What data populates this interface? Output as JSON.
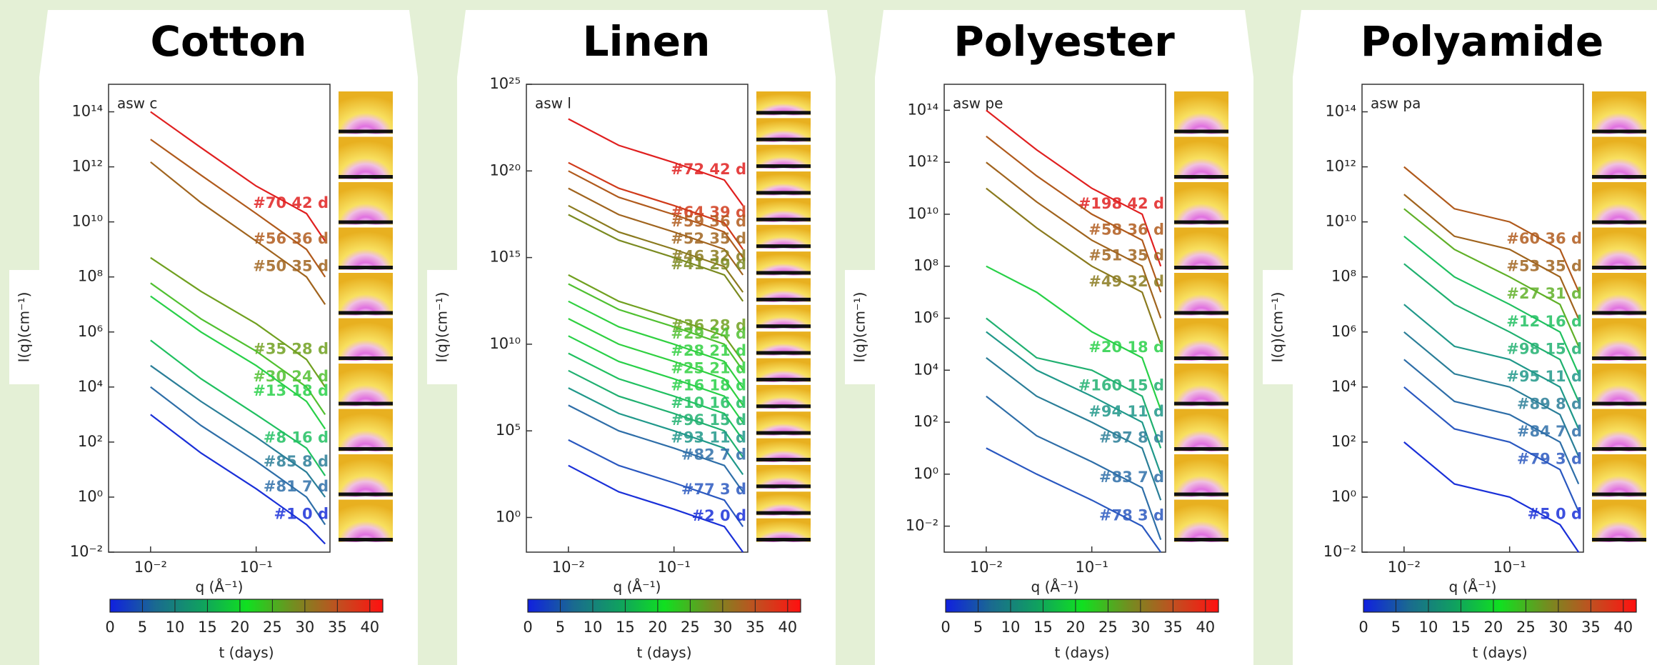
{
  "chart_data": [
    {
      "type": "line",
      "title": "Cotton",
      "inner_label": "asw  c",
      "xlabel": "q (Å⁻¹)",
      "ylabel": "I(q)(cm⁻¹)",
      "log_x": true,
      "log_y": true,
      "x": [
        0.01,
        0.03,
        0.1,
        0.3,
        0.45
      ],
      "xlim": [
        0.004,
        0.5
      ],
      "xticks": [
        {
          "value": 0.01,
          "label": "10⁻²"
        },
        {
          "value": 0.1,
          "label": "10⁻¹"
        }
      ],
      "ylim": [
        0.01,
        1000000000000000.0
      ],
      "yticks": [
        {
          "value": 0.01,
          "label": "10⁻²"
        },
        {
          "value": 1,
          "label": "10⁰"
        },
        {
          "value": 100,
          "label": "10²"
        },
        {
          "value": 10000,
          "label": "10⁴"
        },
        {
          "value": 1000000.0,
          "label": "10⁶"
        },
        {
          "value": 100000000.0,
          "label": "10⁸"
        },
        {
          "value": 10000000000.0,
          "label": "10¹⁰"
        },
        {
          "value": 1000000000000.0,
          "label": "10¹²"
        },
        {
          "value": 100000000000000.0,
          "label": "10¹⁴"
        }
      ],
      "series": [
        {
          "name": "#70 42 d",
          "color": "#e02020",
          "values": [
            100000000000000.0,
            5000000000000.0,
            200000000000.0,
            20000000000.0,
            2000000000.0
          ]
        },
        {
          "name": "#56 36 d",
          "color": "#b05a1c",
          "values": [
            10000000000000.0,
            500000000000.0,
            20000000000.0,
            1000000000.0,
            100000000.0
          ]
        },
        {
          "name": "#50 35 d",
          "color": "#a0641e",
          "values": [
            1500000000000.0,
            50000000000.0,
            2000000000.0,
            100000000.0,
            10000000.0
          ]
        },
        {
          "name": "#35 28 d",
          "color": "#70a020",
          "values": [
            500000000.0,
            30000000.0,
            2000000.0,
            100000.0,
            10000.0
          ]
        },
        {
          "name": "#30 24 d",
          "color": "#50c030",
          "values": [
            60000000.0,
            3000000.0,
            200000.0,
            10000.0,
            1000
          ]
        },
        {
          "name": "#13 18 d",
          "color": "#28d048",
          "values": [
            20000000.0,
            1000000.0,
            60000.0,
            3000,
            300
          ]
        },
        {
          "name": "#8 16 d",
          "color": "#20c060",
          "values": [
            500000.0,
            20000.0,
            1000,
            60,
            6
          ]
        },
        {
          "name": "#85 8 d",
          "color": "#2a7e98",
          "values": [
            60000.0,
            3000,
            150,
            8,
            1
          ]
        },
        {
          "name": "#81 7 d",
          "color": "#2e6ea8",
          "values": [
            10000.0,
            400,
            20,
            1,
            0.1
          ]
        },
        {
          "name": "#1 0 d",
          "color": "#1a30d8",
          "values": [
            1000,
            40,
            2,
            0.1,
            0.02
          ]
        }
      ],
      "colorbar": {
        "lim": [
          0,
          42
        ],
        "ticks": [
          0,
          5,
          10,
          15,
          20,
          25,
          30,
          35,
          40
        ],
        "label": "t (days)",
        "colors": [
          "#1020e0",
          "#1a6a90",
          "#10a060",
          "#10e020",
          "#709020",
          "#c05020",
          "#ff1010"
        ]
      }
    },
    {
      "type": "line",
      "title": "Linen",
      "inner_label": "asw  l",
      "xlabel": "q (Å⁻¹)",
      "ylabel": "I(q)(cm⁻¹)",
      "log_x": true,
      "log_y": true,
      "x": [
        0.01,
        0.03,
        0.1,
        0.3,
        0.45
      ],
      "xlim": [
        0.004,
        0.5
      ],
      "xticks": [
        {
          "value": 0.01,
          "label": "10⁻²"
        },
        {
          "value": 0.1,
          "label": "10⁻¹"
        }
      ],
      "ylim": [
        0.01,
        1e+25
      ],
      "yticks": [
        {
          "value": 1,
          "label": "10⁰"
        },
        {
          "value": 100000.0,
          "label": "10⁵"
        },
        {
          "value": 10000000000.0,
          "label": "10¹⁰"
        },
        {
          "value": 1000000000000000.0,
          "label": "10¹⁵"
        },
        {
          "value": 1e+20,
          "label": "10²⁰"
        },
        {
          "value": 1e+25,
          "label": "10²⁵"
        }
      ],
      "series": [
        {
          "name": "#72 42 d",
          "color": "#e02020",
          "values": [
            1e+23,
            3e+21,
            3e+20,
            3e+19,
            1e+18
          ]
        },
        {
          "name": "#64 39 d",
          "color": "#d03a1a",
          "values": [
            3e+20,
            1e+19,
            1e+18,
            1e+17,
            3000000000000000.0
          ]
        },
        {
          "name": "#59 36 d",
          "color": "#b05a1c",
          "values": [
            1e+20,
            3e+18,
            3e+17,
            3e+16,
            1000000000000000.0
          ]
        },
        {
          "name": "#52 35 d",
          "color": "#a0641e",
          "values": [
            1e+19,
            3e+17,
            3e+16,
            3000000000000000.0,
            100000000000000.0
          ]
        },
        {
          "name": "#46 32 d",
          "color": "#8a7a1e",
          "values": [
            1e+18,
            3e+16,
            3000000000000000.0,
            300000000000000.0,
            10000000000000.0
          ]
        },
        {
          "name": "#41 29 d",
          "color": "#7a8a20",
          "values": [
            3e+17,
            1e+16,
            1000000000000000.0,
            100000000000000.0,
            3000000000000.0
          ]
        },
        {
          "name": "#36 28 d",
          "color": "#70a020",
          "values": [
            100000000000000.0,
            3000000000000.0,
            300000000000.0,
            30000000000.0,
            1000000000.0
          ]
        },
        {
          "name": "#29 24 d",
          "color": "#50c030",
          "values": [
            30000000000000.0,
            1000000000000.0,
            100000000000.0,
            10000000000.0,
            300000000.0
          ]
        },
        {
          "name": "#28 21 d",
          "color": "#30d040",
          "values": [
            3000000000000.0,
            100000000000.0,
            10000000000.0,
            1000000000.0,
            30000000.0
          ]
        },
        {
          "name": "#25 21 d",
          "color": "#30d040",
          "values": [
            300000000000.0,
            10000000000.0,
            1000000000.0,
            100000000.0,
            3000000.0
          ]
        },
        {
          "name": "#16 18 d",
          "color": "#28d048",
          "values": [
            30000000000.0,
            1000000000.0,
            100000000.0,
            10000000.0,
            300000.0
          ]
        },
        {
          "name": "#10 16 d",
          "color": "#20c060",
          "values": [
            3000000000.0,
            100000000.0,
            10000000.0,
            1000000.0,
            30000.0
          ]
        },
        {
          "name": "#96 15 d",
          "color": "#20b070",
          "values": [
            300000000.0,
            10000000.0,
            1000000.0,
            100000.0,
            3000
          ]
        },
        {
          "name": "#93 11 d",
          "color": "#20988a",
          "values": [
            30000000.0,
            1000000.0,
            100000.0,
            10000.0,
            300
          ]
        },
        {
          "name": "#82 7 d",
          "color": "#2e6ea8",
          "values": [
            3000000.0,
            100000.0,
            10000.0,
            1000,
            30
          ]
        },
        {
          "name": "#77 3 d",
          "color": "#2a58c0",
          "values": [
            30000.0,
            1000,
            100,
            10,
            0.3
          ]
        },
        {
          "name": "#2 0 d",
          "color": "#1a30d8",
          "values": [
            1000,
            30,
            3,
            0.3,
            0.01
          ]
        }
      ],
      "colorbar": {
        "lim": [
          0,
          42
        ],
        "ticks": [
          0,
          5,
          10,
          15,
          20,
          25,
          30,
          35,
          40
        ],
        "label": "t (days)",
        "colors": [
          "#1020e0",
          "#1a6a90",
          "#10a060",
          "#10e020",
          "#709020",
          "#c05020",
          "#ff1010"
        ]
      }
    },
    {
      "type": "line",
      "title": "Polyester",
      "inner_label": "asw  pe",
      "xlabel": "q (Å⁻¹)",
      "ylabel": "I(q)(cm⁻¹)",
      "log_x": true,
      "log_y": true,
      "x": [
        0.01,
        0.03,
        0.1,
        0.3,
        0.45
      ],
      "xlim": [
        0.004,
        0.5
      ],
      "xticks": [
        {
          "value": 0.01,
          "label": "10⁻²"
        },
        {
          "value": 0.1,
          "label": "10⁻¹"
        }
      ],
      "ylim": [
        0.001,
        1000000000000000.0
      ],
      "yticks": [
        {
          "value": 0.01,
          "label": "10⁻²"
        },
        {
          "value": 1,
          "label": "10⁰"
        },
        {
          "value": 100,
          "label": "10²"
        },
        {
          "value": 10000,
          "label": "10⁴"
        },
        {
          "value": 1000000.0,
          "label": "10⁶"
        },
        {
          "value": 100000000.0,
          "label": "10⁸"
        },
        {
          "value": 10000000000.0,
          "label": "10¹⁰"
        },
        {
          "value": 1000000000000.0,
          "label": "10¹²"
        },
        {
          "value": 100000000000000.0,
          "label": "10¹⁴"
        }
      ],
      "series": [
        {
          "name": "#198 42 d",
          "color": "#e02020",
          "values": [
            100000000000000.0,
            3000000000000.0,
            100000000000.0,
            10000000000.0,
            100000000.0
          ]
        },
        {
          "name": "#58 36 d",
          "color": "#b05a1c",
          "values": [
            10000000000000.0,
            300000000000.0,
            10000000000.0,
            1000000000.0,
            10000000.0
          ]
        },
        {
          "name": "#51 35 d",
          "color": "#a0641e",
          "values": [
            1000000000000.0,
            30000000000.0,
            1000000000.0,
            100000000.0,
            1000000.0
          ]
        },
        {
          "name": "#49 32 d",
          "color": "#8a7a1e",
          "values": [
            100000000000.0,
            3000000000.0,
            100000000.0,
            10000000.0,
            100000.0
          ]
        },
        {
          "name": "#20 18 d",
          "color": "#28d048",
          "values": [
            100000000.0,
            10000000.0,
            300000.0,
            30000.0,
            300
          ]
        },
        {
          "name": "#160 15 d",
          "color": "#20b070",
          "values": [
            1000000.0,
            30000.0,
            10000.0,
            1000,
            10
          ]
        },
        {
          "name": "#94 11 d",
          "color": "#20988a",
          "values": [
            300000.0,
            10000.0,
            1000,
            100,
            1
          ]
        },
        {
          "name": "#97 8 d",
          "color": "#2a7e98",
          "values": [
            30000.0,
            1000,
            100,
            10,
            0.1
          ]
        },
        {
          "name": "#83 7 d",
          "color": "#2e6ea8",
          "values": [
            1000,
            30,
            3,
            0.3,
            0.003
          ]
        },
        {
          "name": "#78 3 d",
          "color": "#2a58c0",
          "values": [
            10,
            1,
            0.1,
            0.01,
            0.001
          ]
        }
      ],
      "colorbar": {
        "lim": [
          0,
          42
        ],
        "ticks": [
          0,
          5,
          10,
          15,
          20,
          25,
          30,
          35,
          40
        ],
        "label": "t (days)",
        "colors": [
          "#1020e0",
          "#1a6a90",
          "#10a060",
          "#10e020",
          "#709020",
          "#c05020",
          "#ff1010"
        ]
      }
    },
    {
      "type": "line",
      "title": "Polyamide",
      "inner_label": "asw  pa",
      "xlabel": "q (Å⁻¹)",
      "ylabel": "I(q)(cm⁻¹)",
      "log_x": true,
      "log_y": true,
      "x": [
        0.01,
        0.03,
        0.1,
        0.3,
        0.45
      ],
      "xlim": [
        0.004,
        0.5
      ],
      "xticks": [
        {
          "value": 0.01,
          "label": "10⁻²"
        },
        {
          "value": 0.1,
          "label": "10⁻¹"
        }
      ],
      "ylim": [
        0.01,
        1000000000000000.0
      ],
      "yticks": [
        {
          "value": 0.01,
          "label": "10⁻²"
        },
        {
          "value": 1,
          "label": "10⁰"
        },
        {
          "value": 100,
          "label": "10²"
        },
        {
          "value": 10000,
          "label": "10⁴"
        },
        {
          "value": 1000000.0,
          "label": "10⁶"
        },
        {
          "value": 100000000.0,
          "label": "10⁸"
        },
        {
          "value": 10000000000.0,
          "label": "10¹⁰"
        },
        {
          "value": 1000000000000.0,
          "label": "10¹²"
        },
        {
          "value": 100000000000000.0,
          "label": "10¹⁴"
        }
      ],
      "series": [
        {
          "name": "#60 36 d",
          "color": "#b05a1c",
          "values": [
            1000000000000.0,
            30000000000.0,
            10000000000.0,
            1000000000.0,
            30000000.0
          ]
        },
        {
          "name": "#53 35 d",
          "color": "#a0641e",
          "values": [
            100000000000.0,
            3000000000.0,
            1000000000.0,
            100000000.0,
            3000000.0
          ]
        },
        {
          "name": "#27 31 d",
          "color": "#60b028",
          "values": [
            30000000000.0,
            1000000000.0,
            100000000.0,
            10000000.0,
            300000.0
          ]
        },
        {
          "name": "#12 16 d",
          "color": "#20c060",
          "values": [
            3000000000.0,
            100000000.0,
            10000000.0,
            1000000.0,
            30000.0
          ]
        },
        {
          "name": "#98 15 d",
          "color": "#20b070",
          "values": [
            300000000.0,
            10000000.0,
            1000000.0,
            100000.0,
            3000
          ]
        },
        {
          "name": "#95 11 d",
          "color": "#20988a",
          "values": [
            10000000.0,
            300000.0,
            100000.0,
            10000.0,
            300
          ]
        },
        {
          "name": "#89 8 d",
          "color": "#2a7e98",
          "values": [
            1000000.0,
            30000.0,
            10000.0,
            1000,
            30
          ]
        },
        {
          "name": "#84 7 d",
          "color": "#2e6ea8",
          "values": [
            100000.0,
            3000,
            1000,
            100,
            3
          ]
        },
        {
          "name": "#79 3 d",
          "color": "#2a58c0",
          "values": [
            10000.0,
            300,
            100,
            10,
            0.3
          ]
        },
        {
          "name": "#5 0 d",
          "color": "#1a30d8",
          "values": [
            100,
            3,
            1,
            0.1,
            0.01
          ]
        }
      ],
      "colorbar": {
        "lim": [
          0,
          42
        ],
        "ticks": [
          0,
          5,
          10,
          15,
          20,
          25,
          30,
          35,
          40
        ],
        "label": "t (days)",
        "colors": [
          "#1020e0",
          "#1a6a90",
          "#10a060",
          "#10e020",
          "#709020",
          "#c05020",
          "#ff1010"
        ]
      }
    }
  ]
}
